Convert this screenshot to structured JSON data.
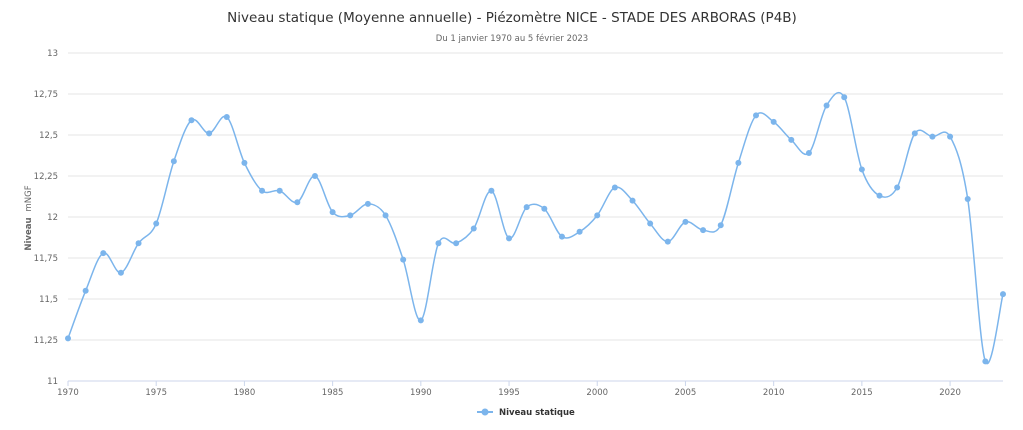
{
  "chart_data": {
    "type": "line",
    "title": "Niveau statique (Moyenne annuelle) - Piézomètre NICE - STADE DES ARBORAS (P4B)",
    "subtitle": "Du 1 janvier 1970 au 5 février 2023",
    "ylabel_main": "Niveau",
    "ylabel_unit": "mNGF",
    "ylim": [
      11,
      13
    ],
    "yticks": [
      11,
      11.25,
      11.5,
      11.75,
      12,
      12.25,
      12.5,
      12.75,
      13
    ],
    "ytick_labels": [
      "11",
      "11,25",
      "11,5",
      "11,75",
      "12",
      "12,25",
      "12,5",
      "12,75",
      "13"
    ],
    "xlim": [
      1970,
      2023
    ],
    "xticks": [
      1970,
      1975,
      1980,
      1985,
      1990,
      1995,
      2000,
      2005,
      2010,
      2015,
      2020
    ],
    "xtick_labels": [
      "1970",
      "1975",
      "1980",
      "1985",
      "1990",
      "1995",
      "2000",
      "2005",
      "2010",
      "2015",
      "2020"
    ],
    "grid": true,
    "legend_position": "bottom-center",
    "series": [
      {
        "name": "Niveau statique",
        "color": "#7cb5ec",
        "x": [
          1970,
          1971,
          1972,
          1973,
          1974,
          1975,
          1976,
          1977,
          1978,
          1979,
          1980,
          1981,
          1982,
          1983,
          1984,
          1985,
          1986,
          1987,
          1988,
          1989,
          1990,
          1991,
          1992,
          1993,
          1994,
          1995,
          1996,
          1997,
          1998,
          1999,
          2000,
          2001,
          2002,
          2003,
          2004,
          2005,
          2006,
          2007,
          2008,
          2009,
          2010,
          2011,
          2012,
          2013,
          2014,
          2015,
          2016,
          2017,
          2018,
          2019,
          2020,
          2021,
          2022,
          2023
        ],
        "values": [
          11.26,
          11.55,
          11.78,
          11.66,
          11.84,
          11.96,
          12.34,
          12.59,
          12.51,
          12.61,
          12.33,
          12.16,
          12.16,
          12.09,
          12.25,
          12.03,
          12.01,
          12.08,
          12.01,
          11.74,
          11.37,
          11.84,
          11.84,
          11.93,
          12.16,
          11.87,
          12.06,
          12.05,
          11.88,
          11.91,
          12.01,
          12.18,
          12.1,
          11.96,
          11.85,
          11.97,
          11.92,
          11.95,
          12.33,
          12.62,
          12.58,
          12.47,
          12.39,
          12.68,
          12.73,
          12.29,
          12.13,
          12.18,
          12.51,
          12.49,
          12.49,
          12.11,
          11.12,
          11.53
        ]
      }
    ]
  }
}
